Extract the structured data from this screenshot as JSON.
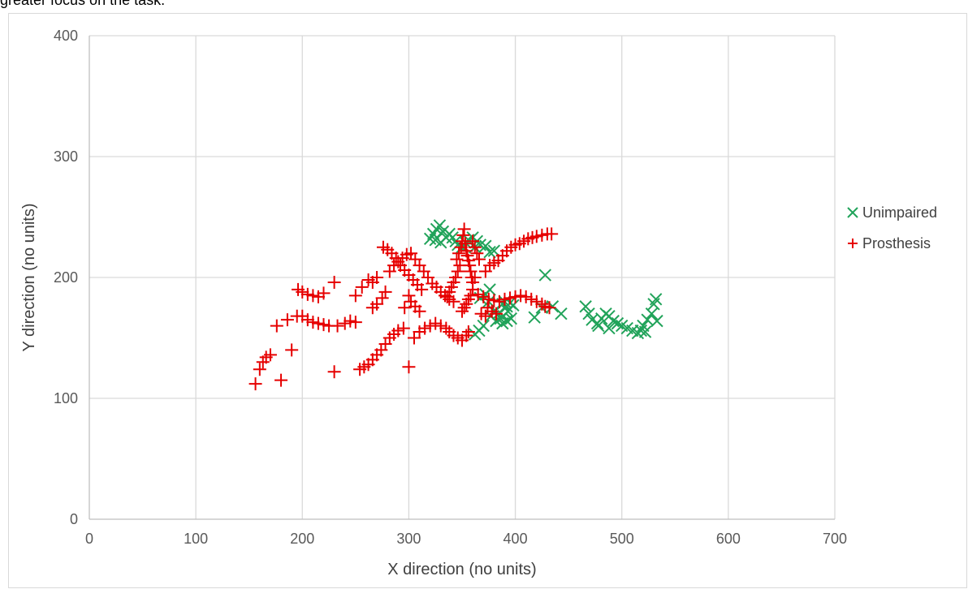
{
  "caption_fragment": "greater focus on the task.",
  "chart_data": {
    "type": "scatter",
    "title": "",
    "xlabel": "X direction (no units)",
    "ylabel": "Y direction (no units)",
    "xlim": [
      0,
      700
    ],
    "ylim": [
      0,
      400
    ],
    "xticks": [
      "0",
      "100",
      "200",
      "300",
      "400",
      "500",
      "600",
      "700"
    ],
    "yticks": [
      "0",
      "100",
      "200",
      "300",
      "400"
    ],
    "grid": true,
    "legend_position": "right",
    "series": [
      {
        "name": "Unimpaired",
        "marker": "x",
        "color": "#21a35a",
        "points": [
          [
            320,
            232
          ],
          [
            323,
            236
          ],
          [
            326,
            240
          ],
          [
            329,
            243
          ],
          [
            332,
            238
          ],
          [
            335,
            233
          ],
          [
            330,
            229
          ],
          [
            325,
            231
          ],
          [
            338,
            236
          ],
          [
            341,
            233
          ],
          [
            344,
            230
          ],
          [
            346,
            227
          ],
          [
            350,
            225
          ],
          [
            353,
            229
          ],
          [
            356,
            231
          ],
          [
            360,
            233
          ],
          [
            364,
            230
          ],
          [
            367,
            227
          ],
          [
            362,
            225
          ],
          [
            372,
            226
          ],
          [
            376,
            221
          ],
          [
            380,
            222
          ],
          [
            388,
            178
          ],
          [
            390,
            180
          ],
          [
            392,
            176
          ],
          [
            395,
            179
          ],
          [
            398,
            177
          ],
          [
            393,
            172
          ],
          [
            389,
            168
          ],
          [
            386,
            166
          ],
          [
            384,
            170
          ],
          [
            380,
            172
          ],
          [
            377,
            168
          ],
          [
            382,
            164
          ],
          [
            388,
            162
          ],
          [
            392,
            164
          ],
          [
            396,
            166
          ],
          [
            370,
            160
          ],
          [
            366,
            156
          ],
          [
            362,
            153
          ],
          [
            367,
            183
          ],
          [
            372,
            186
          ],
          [
            376,
            190
          ],
          [
            375,
            180
          ],
          [
            418,
            167
          ],
          [
            425,
            175
          ],
          [
            428,
            202
          ],
          [
            435,
            176
          ],
          [
            443,
            170
          ],
          [
            466,
            176
          ],
          [
            469,
            170
          ],
          [
            472,
            165
          ],
          [
            477,
            162
          ],
          [
            481,
            166
          ],
          [
            485,
            170
          ],
          [
            488,
            168
          ],
          [
            492,
            164
          ],
          [
            496,
            162
          ],
          [
            500,
            160
          ],
          [
            505,
            158
          ],
          [
            510,
            156
          ],
          [
            515,
            154
          ],
          [
            518,
            156
          ],
          [
            520,
            160
          ],
          [
            522,
            155
          ],
          [
            524,
            165
          ],
          [
            528,
            170
          ],
          [
            530,
            178
          ],
          [
            532,
            182
          ],
          [
            533,
            164
          ],
          [
            488,
            158
          ],
          [
            478,
            160
          ]
        ]
      },
      {
        "name": "Prosthesis",
        "marker": "+",
        "color": "#e60000",
        "points": [
          [
            156,
            112
          ],
          [
            160,
            124
          ],
          [
            163,
            130
          ],
          [
            166,
            134
          ],
          [
            170,
            136
          ],
          [
            176,
            160
          ],
          [
            180,
            115
          ],
          [
            186,
            165
          ],
          [
            190,
            140
          ],
          [
            195,
            168
          ],
          [
            200,
            168
          ],
          [
            205,
            165
          ],
          [
            210,
            163
          ],
          [
            215,
            162
          ],
          [
            220,
            161
          ],
          [
            225,
            160
          ],
          [
            230,
            122
          ],
          [
            233,
            160
          ],
          [
            240,
            162
          ],
          [
            245,
            164
          ],
          [
            250,
            163
          ],
          [
            254,
            124
          ],
          [
            258,
            126
          ],
          [
            262,
            128
          ],
          [
            266,
            132
          ],
          [
            270,
            136
          ],
          [
            274,
            140
          ],
          [
            278,
            145
          ],
          [
            282,
            150
          ],
          [
            286,
            153
          ],
          [
            290,
            156
          ],
          [
            295,
            158
          ],
          [
            300,
            126
          ],
          [
            305,
            150
          ],
          [
            310,
            155
          ],
          [
            315,
            158
          ],
          [
            320,
            160
          ],
          [
            325,
            162
          ],
          [
            330,
            160
          ],
          [
            335,
            158
          ],
          [
            338,
            155
          ],
          [
            342,
            152
          ],
          [
            346,
            150
          ],
          [
            350,
            148
          ],
          [
            354,
            152
          ],
          [
            356,
            155
          ],
          [
            196,
            190
          ],
          [
            200,
            188
          ],
          [
            205,
            186
          ],
          [
            210,
            185
          ],
          [
            215,
            184
          ],
          [
            220,
            187
          ],
          [
            230,
            196
          ],
          [
            250,
            185
          ],
          [
            256,
            192
          ],
          [
            262,
            198
          ],
          [
            266,
            175
          ],
          [
            270,
            178
          ],
          [
            275,
            183
          ],
          [
            278,
            188
          ],
          [
            282,
            205
          ],
          [
            286,
            210
          ],
          [
            290,
            213
          ],
          [
            294,
            216
          ],
          [
            298,
            219
          ],
          [
            302,
            220
          ],
          [
            306,
            215
          ],
          [
            310,
            210
          ],
          [
            314,
            205
          ],
          [
            318,
            200
          ],
          [
            322,
            195
          ],
          [
            326,
            192
          ],
          [
            330,
            188
          ],
          [
            334,
            185
          ],
          [
            338,
            182
          ],
          [
            342,
            180
          ],
          [
            270,
            200
          ],
          [
            266,
            196
          ],
          [
            276,
            225
          ],
          [
            280,
            223
          ],
          [
            284,
            220
          ],
          [
            288,
            216
          ],
          [
            292,
            210
          ],
          [
            296,
            206
          ],
          [
            300,
            202
          ],
          [
            304,
            198
          ],
          [
            308,
            194
          ],
          [
            312,
            190
          ],
          [
            300,
            185
          ],
          [
            302,
            180
          ],
          [
            306,
            176
          ],
          [
            310,
            172
          ],
          [
            296,
            175
          ],
          [
            345,
            215
          ],
          [
            347,
            220
          ],
          [
            349,
            225
          ],
          [
            350,
            230
          ],
          [
            351,
            235
          ],
          [
            352,
            240
          ],
          [
            353,
            228
          ],
          [
            354,
            222
          ],
          [
            355,
            218
          ],
          [
            356,
            214
          ],
          [
            357,
            210
          ],
          [
            358,
            205
          ],
          [
            359,
            200
          ],
          [
            360,
            196
          ],
          [
            348,
            210
          ],
          [
            346,
            205
          ],
          [
            344,
            200
          ],
          [
            342,
            196
          ],
          [
            340,
            192
          ],
          [
            338,
            188
          ],
          [
            336,
            184
          ],
          [
            360,
            230
          ],
          [
            362,
            225
          ],
          [
            364,
            220
          ],
          [
            366,
            215
          ],
          [
            362,
            200
          ],
          [
            360,
            190
          ],
          [
            358,
            185
          ],
          [
            356,
            182
          ],
          [
            354,
            178
          ],
          [
            352,
            175
          ],
          [
            350,
            172
          ],
          [
            372,
            205
          ],
          [
            376,
            210
          ],
          [
            380,
            212
          ],
          [
            384,
            214
          ],
          [
            388,
            218
          ],
          [
            392,
            222
          ],
          [
            396,
            225
          ],
          [
            400,
            227
          ],
          [
            404,
            228
          ],
          [
            408,
            230
          ],
          [
            412,
            232
          ],
          [
            416,
            233
          ],
          [
            420,
            234
          ],
          [
            425,
            235
          ],
          [
            430,
            236
          ],
          [
            434,
            236
          ],
          [
            365,
            186
          ],
          [
            370,
            184
          ],
          [
            375,
            182
          ],
          [
            380,
            181
          ],
          [
            385,
            180
          ],
          [
            390,
            182
          ],
          [
            395,
            183
          ],
          [
            400,
            184
          ],
          [
            405,
            185
          ],
          [
            410,
            184
          ],
          [
            415,
            182
          ],
          [
            420,
            180
          ],
          [
            425,
            178
          ],
          [
            428,
            176
          ],
          [
            432,
            175
          ],
          [
            374,
            175
          ],
          [
            378,
            172
          ],
          [
            382,
            170
          ],
          [
            372,
            168
          ],
          [
            368,
            170
          ]
        ]
      }
    ]
  }
}
